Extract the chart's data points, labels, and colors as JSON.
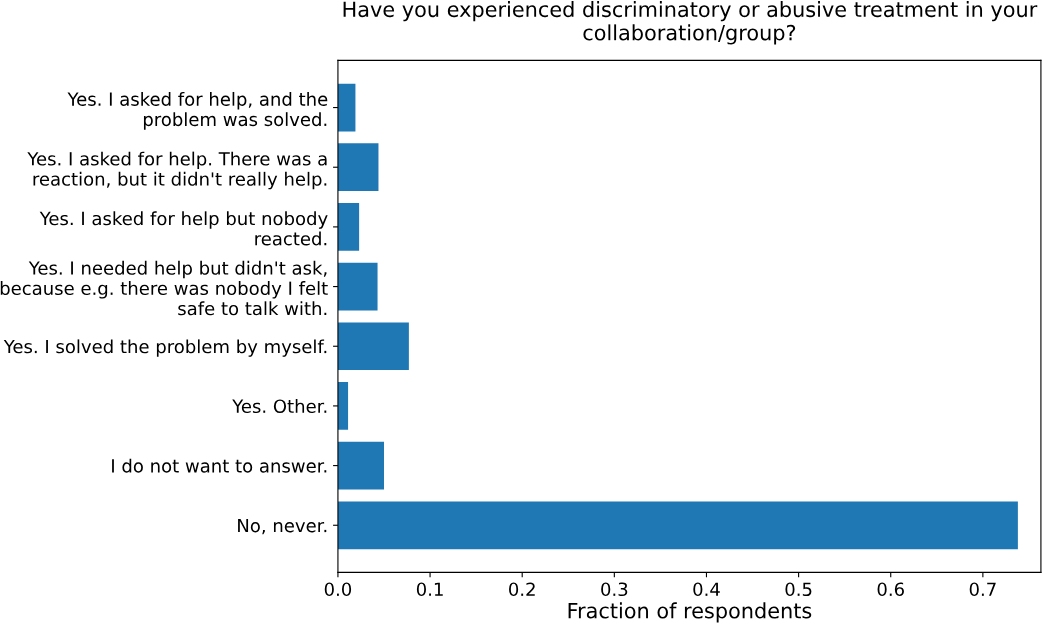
{
  "chart_data": {
    "type": "bar",
    "orientation": "horizontal",
    "title": "Have you experienced discriminatory or abusive treatment in your collaboration/group?",
    "xlabel": "Fraction of respondents",
    "categories": [
      "Yes. I asked for help, and the\nproblem was solved.",
      "Yes. I asked for help. There was a\nreaction, but it didn't really help.",
      "Yes. I asked for help but nobody\nreacted.",
      "Yes. I needed help but didn't ask,\nbecause e.g. there was nobody I felt\nsafe to talk with.",
      "Yes. I solved the problem by myself.",
      "Yes. Other.",
      "I do not want to answer.",
      "No, never."
    ],
    "values": [
      0.019,
      0.044,
      0.023,
      0.043,
      0.077,
      0.011,
      0.05,
      0.738
    ],
    "color": "#1f77b4",
    "xlim": [
      0,
      0.763
    ],
    "xticks": [
      {
        "value": 0,
        "label": "0.0"
      },
      0.1,
      0.2,
      0.3,
      0.4,
      0.5,
      0.6,
      0.7
    ],
    "grid": false
  }
}
